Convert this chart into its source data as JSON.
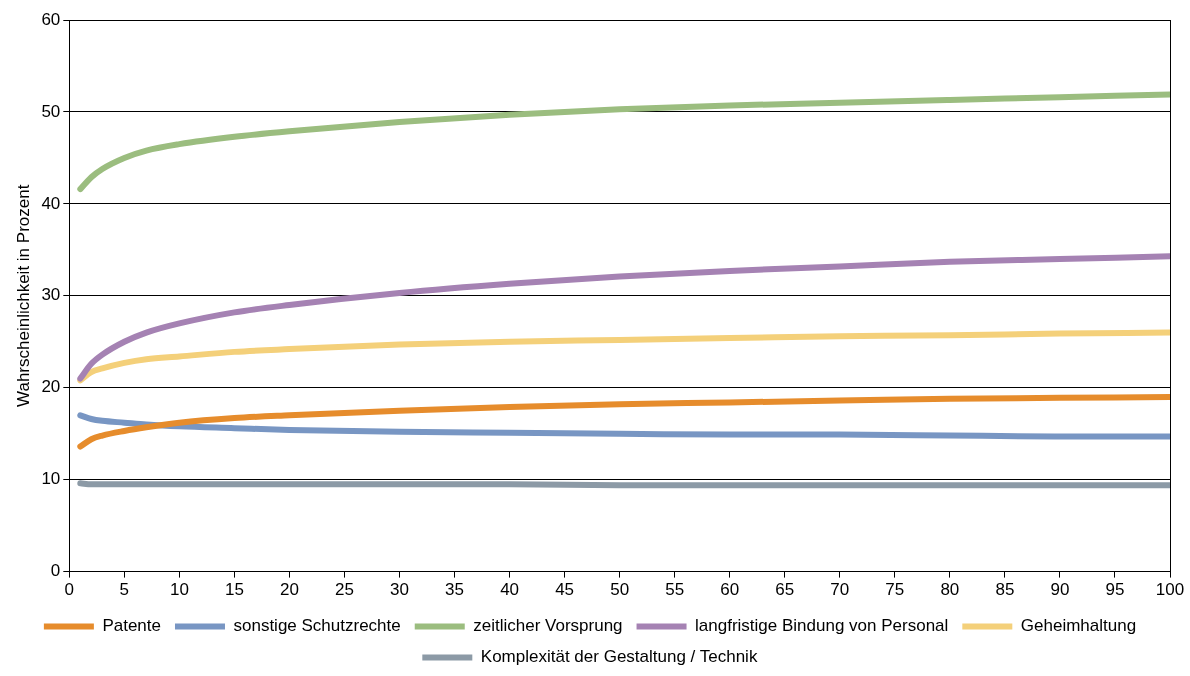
{
  "chart_data": {
    "type": "line",
    "ylabel": "Wahrscheinlichkeit in Prozent",
    "x": [
      1,
      2,
      3,
      5,
      7,
      10,
      15,
      20,
      30,
      40,
      50,
      60,
      70,
      80,
      90,
      100
    ],
    "xlim": [
      0,
      100
    ],
    "xticks": [
      0,
      5,
      10,
      15,
      20,
      25,
      30,
      35,
      40,
      45,
      50,
      55,
      60,
      65,
      70,
      75,
      80,
      85,
      90,
      95,
      100
    ],
    "ylim": [
      0,
      60
    ],
    "yticks": [
      0,
      10,
      20,
      30,
      40,
      50,
      60
    ],
    "grid": "y",
    "legend": "bottom",
    "marker": "none",
    "line_style": "solid",
    "series": [
      {
        "name": "Patente",
        "color": "#e68c2c",
        "values": [
          13.6,
          14.4,
          14.8,
          15.3,
          15.7,
          16.2,
          16.7,
          17.0,
          17.5,
          17.9,
          18.2,
          18.4,
          18.6,
          18.8,
          18.9,
          19.0
        ]
      },
      {
        "name": "sonstige Schutzrechte",
        "color": "#7896c3",
        "values": [
          17.0,
          16.6,
          16.4,
          16.2,
          16.0,
          15.8,
          15.6,
          15.4,
          15.2,
          15.1,
          15.0,
          14.9,
          14.9,
          14.8,
          14.7,
          14.7
        ]
      },
      {
        "name": "zeitlicher Vorsprung",
        "color": "#9bbd7f",
        "values": [
          41.6,
          42.9,
          43.8,
          45.0,
          45.8,
          46.5,
          47.3,
          47.9,
          48.9,
          49.7,
          50.3,
          50.7,
          51.0,
          51.3,
          51.6,
          51.9
        ]
      },
      {
        "name": "langfristige Bindung von Personal",
        "color": "#a582b3",
        "values": [
          21.0,
          22.6,
          23.6,
          25.0,
          26.0,
          27.0,
          28.2,
          29.0,
          30.3,
          31.3,
          32.1,
          32.7,
          33.2,
          33.7,
          34.0,
          34.3
        ]
      },
      {
        "name": "Geheimhaltung",
        "color": "#f4d07a",
        "values": [
          20.8,
          21.7,
          22.1,
          22.7,
          23.1,
          23.4,
          23.9,
          24.2,
          24.7,
          25.0,
          25.2,
          25.4,
          25.6,
          25.7,
          25.9,
          26.0
        ]
      },
      {
        "name": "Komplexität der Gestaltung / Technik",
        "color": "#8c9aa6",
        "values": [
          9.6,
          9.5,
          9.5,
          9.5,
          9.5,
          9.5,
          9.5,
          9.5,
          9.5,
          9.5,
          9.4,
          9.4,
          9.4,
          9.4,
          9.4,
          9.4
        ]
      }
    ]
  }
}
